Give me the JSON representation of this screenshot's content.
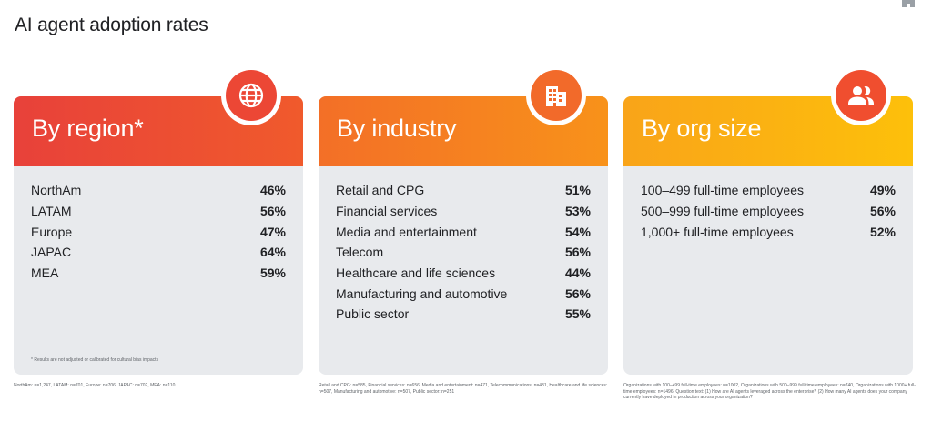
{
  "page": {
    "title": "AI agent adoption rates"
  },
  "cards": [
    {
      "title": "By region*",
      "icon": "globe-icon",
      "rows": [
        {
          "label": "NorthAm",
          "value": "46%"
        },
        {
          "label": "LATAM",
          "value": "56%"
        },
        {
          "label": "Europe",
          "value": "47%"
        },
        {
          "label": "JAPAC",
          "value": "64%"
        },
        {
          "label": "MEA",
          "value": "59%"
        }
      ],
      "note": "* Results are not adjusted or calibrated for cultural bias impacts",
      "footnote": "NorthAm: n=1,247, LATAM: n=701, Europe: n=706, JAPAC: n=702, MEA: n=110"
    },
    {
      "title": "By industry",
      "icon": "building-icon",
      "rows": [
        {
          "label": "Retail and CPG",
          "value": "51%"
        },
        {
          "label": "Financial services",
          "value": "53%"
        },
        {
          "label": "Media and entertainment",
          "value": "54%"
        },
        {
          "label": "Telecom",
          "value": "56%"
        },
        {
          "label": "Healthcare and life sciences",
          "value": "44%"
        },
        {
          "label": "Manufacturing and automotive",
          "value": "56%"
        },
        {
          "label": "Public sector",
          "value": "55%"
        }
      ],
      "footnote": "Retail and CPG: n=585, Financial services: n=656, Media and entertainment: n=471, Telecommunications: n=481, Healthcare and life sciences: n=507, Manufacturing and automotive: n=507, Public sector: n=251"
    },
    {
      "title": "By org size",
      "icon": "people-icon",
      "rows": [
        {
          "label": "100–499 full-time employees",
          "value": "49%"
        },
        {
          "label": "500–999 full-time employees",
          "value": "56%"
        },
        {
          "label": "1,000+ full-time employees",
          "value": "52%"
        }
      ],
      "footnote": "Organizations with 100–499 full-time employees: n=1002, Organizations with 500–999 full-time employees: n=740, Organizations with 1000+ full-time employees: n=1496. Question text: (1) How are AI agents leveraged across the enterprise? (2) How many AI agents does your company currently have deployed in production across your organization?"
    }
  ],
  "colors": {
    "region": "#ea4335",
    "industry": "#f5811f",
    "orgsize": "#fbb614",
    "card_bg": "#e8eaed"
  }
}
